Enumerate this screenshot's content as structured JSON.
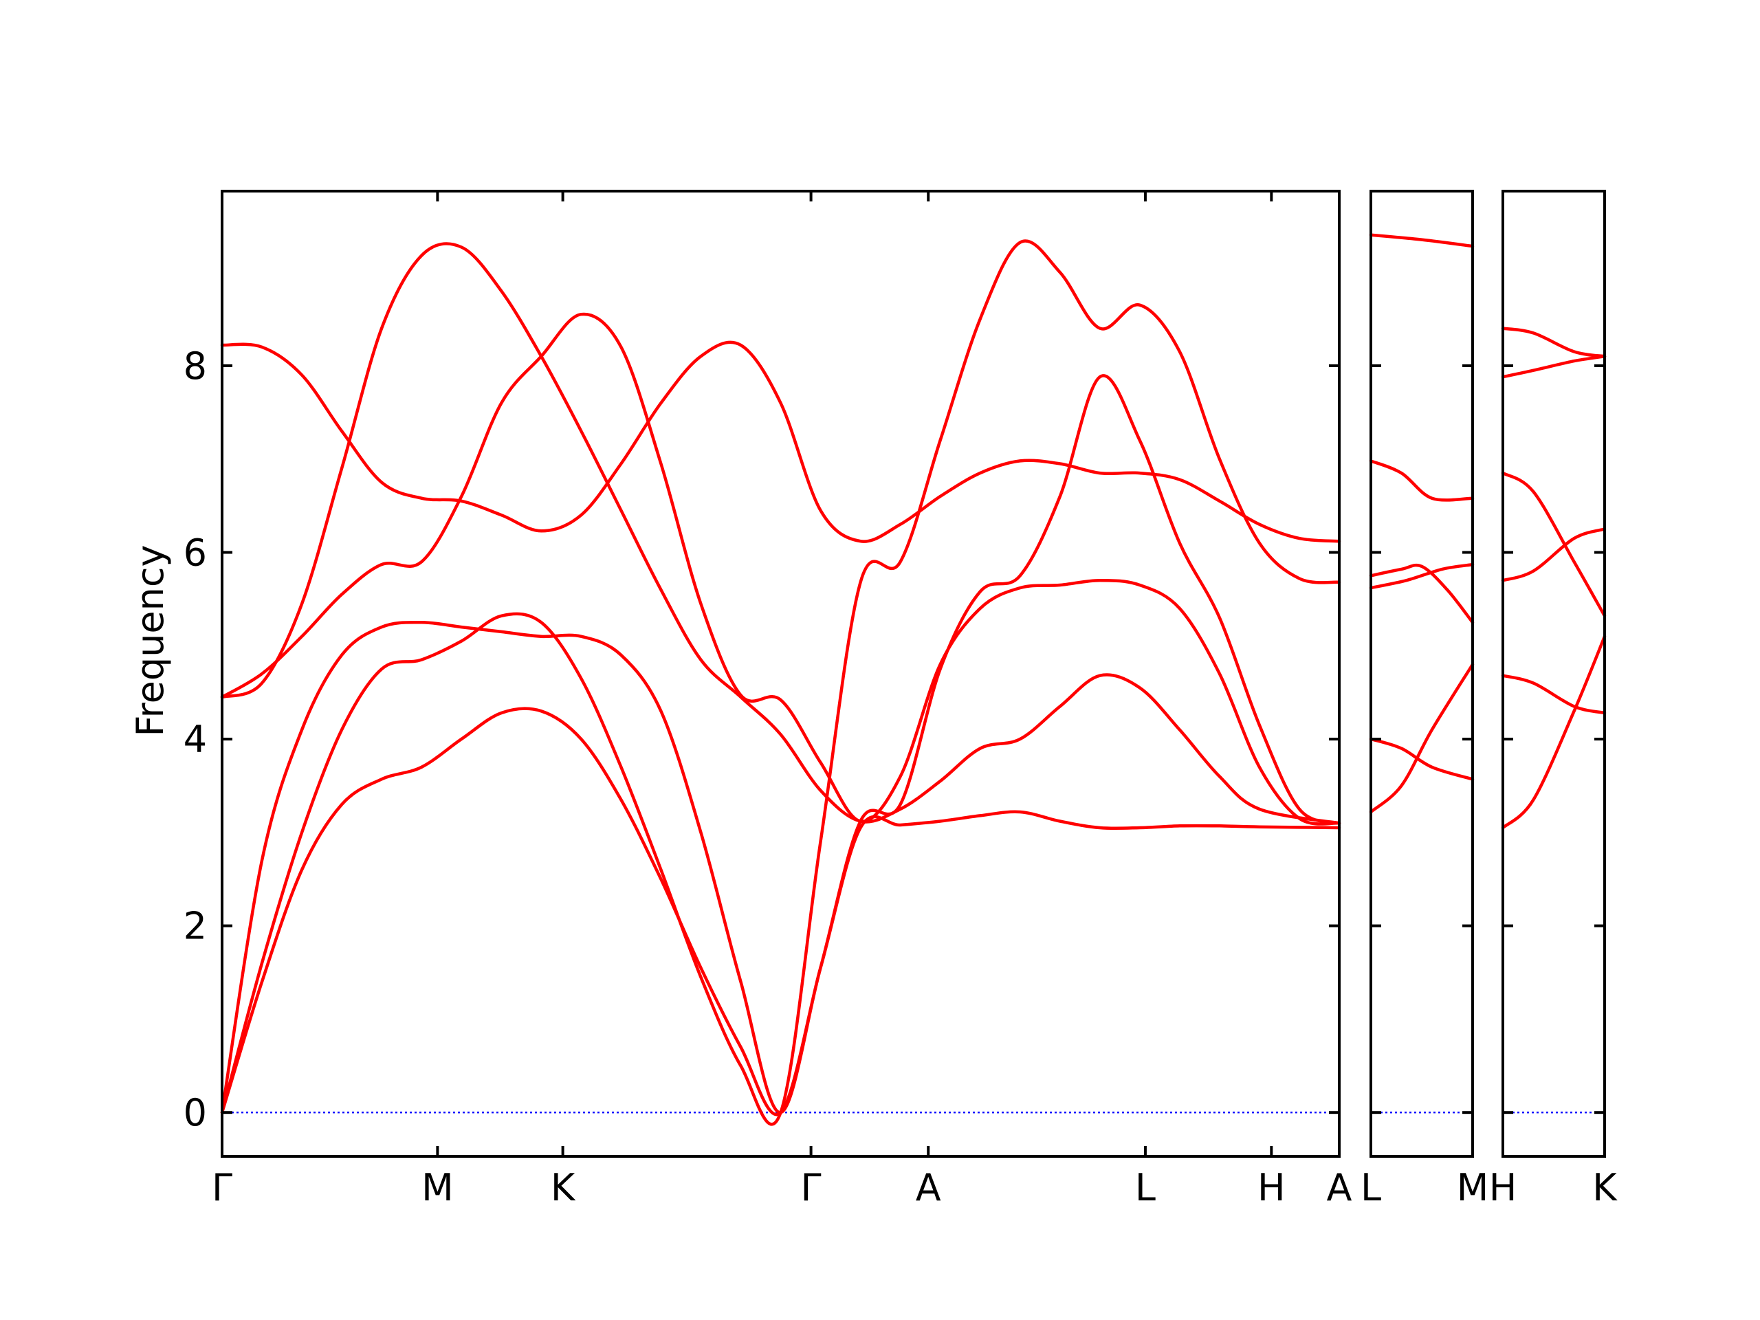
{
  "chart_data": {
    "type": "line",
    "ylabel": "Frequency",
    "ylim": [
      -0.47,
      9.87
    ],
    "yticks": [
      0,
      2,
      4,
      6,
      8
    ],
    "grid": false,
    "colors": {
      "bands": "#ff0000",
      "zero_line": "#0000ff",
      "frame": "#000000"
    },
    "panels": [
      {
        "xlabels": [
          "Γ",
          "M",
          "K",
          "Γ",
          "A",
          "L",
          "H",
          "A"
        ],
        "bands": [
          [
            [
              0,
              8.22
            ],
            [
              0.5,
              8.2
            ],
            [
              1,
              7.9
            ],
            [
              1.5,
              7.3
            ],
            [
              2,
              6.75
            ],
            [
              2.5,
              6.58
            ],
            [
              3,
              6.55
            ],
            [
              3.5,
              6.4
            ],
            [
              4,
              6.23
            ],
            [
              4.5,
              6.4
            ],
            [
              5,
              6.95
            ],
            [
              5.5,
              7.6
            ],
            [
              6,
              8.1
            ],
            [
              6.5,
              8.22
            ],
            [
              7,
              7.6
            ],
            [
              7.5,
              6.45
            ],
            [
              8,
              6.12
            ],
            [
              8.5,
              6.3
            ],
            [
              9,
              6.6
            ],
            [
              9.5,
              6.85
            ],
            [
              10,
              6.98
            ],
            [
              10.5,
              6.95
            ],
            [
              11,
              6.85
            ],
            [
              11.5,
              6.85
            ],
            [
              12,
              6.78
            ],
            [
              12.5,
              6.55
            ],
            [
              13,
              6.3
            ],
            [
              13.5,
              6.15
            ],
            [
              14,
              6.12
            ]
          ],
          [
            [
              0,
              4.45
            ],
            [
              0.5,
              4.6
            ],
            [
              1,
              5.45
            ],
            [
              1.5,
              6.9
            ],
            [
              2,
              8.4
            ],
            [
              2.5,
              9.18
            ],
            [
              3,
              9.27
            ],
            [
              3.5,
              8.8
            ],
            [
              4,
              8.1
            ],
            [
              4.5,
              7.3
            ],
            [
              5,
              6.45
            ],
            [
              5.5,
              5.6
            ],
            [
              6,
              4.85
            ],
            [
              6.5,
              4.45
            ],
            [
              7,
              4.05
            ],
            [
              7.5,
              3.45
            ],
            [
              8,
              3.12
            ],
            [
              8.5,
              3.25
            ],
            [
              9,
              3.55
            ],
            [
              9.5,
              3.9
            ],
            [
              10,
              4.0
            ],
            [
              10.5,
              4.35
            ],
            [
              11,
              4.68
            ],
            [
              11.5,
              4.55
            ],
            [
              12,
              4.1
            ],
            [
              12.5,
              3.6
            ],
            [
              13,
              3.25
            ],
            [
              14,
              3.1
            ]
          ],
          [
            [
              0,
              4.45
            ],
            [
              0.5,
              4.7
            ],
            [
              1,
              5.1
            ],
            [
              1.5,
              5.55
            ],
            [
              2,
              5.87
            ],
            [
              2.5,
              5.9
            ],
            [
              3,
              6.6
            ],
            [
              3.5,
              7.6
            ],
            [
              4,
              8.1
            ],
            [
              4.5,
              8.55
            ],
            [
              5,
              8.2
            ],
            [
              5.5,
              6.95
            ],
            [
              6,
              5.45
            ],
            [
              6.5,
              4.47
            ],
            [
              7,
              4.42
            ],
            [
              7.5,
              3.75
            ],
            [
              8,
              3.12
            ],
            [
              8.5,
              3.6
            ],
            [
              9,
              4.8
            ],
            [
              9.5,
              5.4
            ],
            [
              10,
              5.62
            ],
            [
              10.5,
              5.65
            ],
            [
              11,
              5.7
            ],
            [
              11.5,
              5.65
            ],
            [
              12,
              5.4
            ],
            [
              12.5,
              4.7
            ],
            [
              13,
              3.7
            ],
            [
              13.5,
              3.15
            ],
            [
              14,
              3.1
            ]
          ],
          [
            [
              0,
              0
            ],
            [
              0.5,
              2.7
            ],
            [
              1,
              4.1
            ],
            [
              1.5,
              4.9
            ],
            [
              2,
              5.2
            ],
            [
              2.5,
              5.25
            ],
            [
              3,
              5.2
            ],
            [
              3.5,
              5.15
            ],
            [
              4,
              5.1
            ],
            [
              4.5,
              5.1
            ],
            [
              5,
              4.9
            ],
            [
              5.5,
              4.3
            ],
            [
              6,
              3.0
            ],
            [
              6.5,
              1.4
            ],
            [
              7,
              0
            ],
            [
              7.5,
              1.55
            ],
            [
              8,
              3.05
            ],
            [
              8.5,
              3.08
            ],
            [
              9,
              3.12
            ],
            [
              9.5,
              3.18
            ],
            [
              10,
              3.22
            ],
            [
              10.5,
              3.12
            ],
            [
              11,
              3.05
            ],
            [
              11.5,
              3.05
            ],
            [
              12,
              3.07
            ],
            [
              12.5,
              3.07
            ],
            [
              13,
              3.06
            ],
            [
              14,
              3.05
            ]
          ],
          [
            [
              0,
              0
            ],
            [
              0.5,
              1.6
            ],
            [
              1,
              3.0
            ],
            [
              1.5,
              4.1
            ],
            [
              2,
              4.75
            ],
            [
              2.5,
              4.85
            ],
            [
              3,
              5.05
            ],
            [
              3.5,
              5.32
            ],
            [
              4,
              5.25
            ],
            [
              4.5,
              4.65
            ],
            [
              5,
              3.7
            ],
            [
              5.5,
              2.6
            ],
            [
              6,
              1.45
            ],
            [
              6.5,
              0.5
            ],
            [
              7,
              0
            ],
            [
              7.5,
              2.9
            ],
            [
              8,
              5.68
            ],
            [
              8.5,
              5.9
            ],
            [
              9,
              7.2
            ],
            [
              9.5,
              8.5
            ],
            [
              10,
              9.32
            ],
            [
              10.5,
              9.0
            ],
            [
              11,
              8.4
            ],
            [
              11.5,
              8.65
            ],
            [
              12,
              8.15
            ],
            [
              12.5,
              7.0
            ],
            [
              13,
              6.1
            ],
            [
              13.5,
              5.72
            ],
            [
              14,
              5.68
            ]
          ],
          [
            [
              0,
              0
            ],
            [
              0.5,
              1.4
            ],
            [
              1,
              2.6
            ],
            [
              1.5,
              3.3
            ],
            [
              2,
              3.57
            ],
            [
              2.5,
              3.7
            ],
            [
              3,
              4.0
            ],
            [
              3.5,
              4.28
            ],
            [
              4,
              4.3
            ],
            [
              4.5,
              4.0
            ],
            [
              5,
              3.35
            ],
            [
              5.5,
              2.5
            ],
            [
              6,
              1.55
            ],
            [
              6.5,
              0.7
            ],
            [
              7,
              0
            ],
            [
              7.5,
              1.55
            ],
            [
              8,
              3.12
            ],
            [
              8.5,
              3.3
            ],
            [
              9,
              4.75
            ],
            [
              9.5,
              5.58
            ],
            [
              10,
              5.75
            ],
            [
              10.5,
              6.6
            ],
            [
              11,
              7.88
            ],
            [
              11.5,
              7.2
            ],
            [
              12,
              6.1
            ],
            [
              12.5,
              5.3
            ],
            [
              13,
              4.15
            ],
            [
              13.5,
              3.25
            ],
            [
              14,
              3.1
            ]
          ]
        ]
      },
      {
        "xlabels": [
          "L",
          "M"
        ],
        "bands": [
          [
            [
              0,
              9.4
            ],
            [
              0.5,
              9.35
            ],
            [
              1,
              9.28
            ]
          ],
          [
            [
              0,
              6.98
            ],
            [
              0.3,
              6.85
            ],
            [
              0.6,
              6.58
            ],
            [
              1,
              6.58
            ]
          ],
          [
            [
              0,
              5.75
            ],
            [
              0.3,
              5.82
            ],
            [
              0.5,
              5.85
            ],
            [
              0.75,
              5.6
            ],
            [
              1,
              5.25
            ]
          ],
          [
            [
              0,
              5.62
            ],
            [
              0.35,
              5.7
            ],
            [
              0.7,
              5.82
            ],
            [
              1,
              5.87
            ]
          ],
          [
            [
              0,
              4.0
            ],
            [
              0.3,
              3.9
            ],
            [
              0.6,
              3.7
            ],
            [
              1,
              3.57
            ]
          ],
          [
            [
              0,
              3.22
            ],
            [
              0.3,
              3.5
            ],
            [
              0.6,
              4.1
            ],
            [
              1,
              4.8
            ]
          ]
        ]
      },
      {
        "xlabels": [
          "H",
          "K"
        ],
        "bands": [
          [
            [
              0,
              8.4
            ],
            [
              0.3,
              8.35
            ],
            [
              0.7,
              8.15
            ],
            [
              1,
              8.1
            ]
          ],
          [
            [
              0,
              7.88
            ],
            [
              0.3,
              7.95
            ],
            [
              0.7,
              8.05
            ],
            [
              1,
              8.1
            ]
          ],
          [
            [
              0,
              6.85
            ],
            [
              0.3,
              6.65
            ],
            [
              0.7,
              5.9
            ],
            [
              1,
              5.32
            ]
          ],
          [
            [
              0,
              5.7
            ],
            [
              0.3,
              5.8
            ],
            [
              0.7,
              6.15
            ],
            [
              1,
              6.25
            ]
          ],
          [
            [
              0,
              4.68
            ],
            [
              0.3,
              4.6
            ],
            [
              0.7,
              4.35
            ],
            [
              1,
              4.28
            ]
          ],
          [
            [
              0,
              3.05
            ],
            [
              0.3,
              3.35
            ],
            [
              0.7,
              4.3
            ],
            [
              1,
              5.1
            ]
          ]
        ]
      }
    ]
  }
}
